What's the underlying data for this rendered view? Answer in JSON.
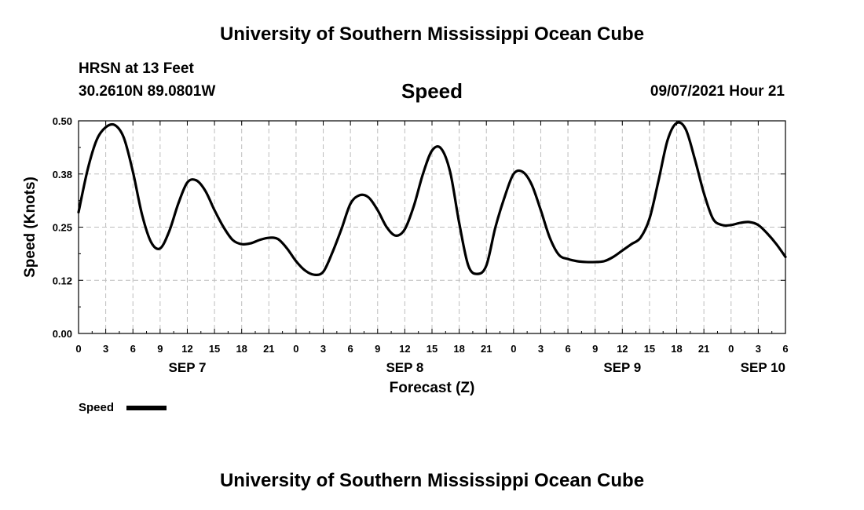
{
  "page": {
    "title": "University of Southern Mississippi Ocean Cube",
    "footer_title": "University of Southern Mississippi Ocean Cube",
    "station": "HRSN at 13 Feet",
    "coordinates": "30.2610N  89.0801W",
    "variable": "Speed",
    "datetime": "09/07/2021 Hour 21"
  },
  "chart_data": {
    "type": "line",
    "title": "Speed",
    "xlabel": "Forecast (Z)",
    "ylabel": "Speed (Knots)",
    "ylim": [
      0,
      0.5
    ],
    "xlim": [
      0,
      78
    ],
    "y_ticks": [
      "0.00",
      "0.12",
      "0.25",
      "0.38",
      "0.50"
    ],
    "x_ticks": [
      "0",
      "3",
      "6",
      "9",
      "12",
      "15",
      "18",
      "21",
      "0",
      "3",
      "6",
      "9",
      "12",
      "15",
      "18",
      "21",
      "0",
      "3",
      "6",
      "9",
      "12",
      "15",
      "18",
      "21",
      "0",
      "3",
      "6"
    ],
    "date_labels": [
      {
        "label": "SEP 7",
        "hour": 12
      },
      {
        "label": "SEP 8",
        "hour": 36
      },
      {
        "label": "SEP 9",
        "hour": 60
      },
      {
        "label": "SEP 10",
        "hour": 78
      }
    ],
    "grid": true,
    "legend": {
      "placement": "bottom-left",
      "entries": [
        {
          "name": "Speed",
          "color": "#000000"
        }
      ]
    },
    "series": [
      {
        "name": "Speed",
        "color": "#000000",
        "x": [
          0,
          1,
          2,
          3,
          4,
          5,
          6,
          7,
          8,
          9,
          10,
          11,
          12,
          13,
          14,
          15,
          16,
          17,
          18,
          19,
          20,
          21,
          22,
          23,
          24,
          25,
          26,
          27,
          28,
          29,
          30,
          31,
          32,
          33,
          34,
          35,
          36,
          37,
          38,
          39,
          40,
          41,
          42,
          43,
          44,
          45,
          46,
          47,
          48,
          49,
          50,
          51,
          52,
          53,
          54,
          55,
          56,
          57,
          58,
          59,
          60,
          61,
          62,
          63,
          64,
          65,
          66,
          67,
          68,
          69,
          70,
          71,
          72,
          73,
          74,
          75,
          76,
          77,
          78
        ],
        "values": [
          0.285,
          0.385,
          0.455,
          0.485,
          0.49,
          0.46,
          0.38,
          0.28,
          0.215,
          0.2,
          0.24,
          0.305,
          0.355,
          0.36,
          0.335,
          0.29,
          0.25,
          0.22,
          0.21,
          0.212,
          0.22,
          0.225,
          0.222,
          0.2,
          0.17,
          0.148,
          0.138,
          0.145,
          0.19,
          0.245,
          0.305,
          0.325,
          0.32,
          0.29,
          0.25,
          0.23,
          0.245,
          0.3,
          0.375,
          0.43,
          0.435,
          0.38,
          0.26,
          0.16,
          0.14,
          0.16,
          0.25,
          0.32,
          0.375,
          0.38,
          0.35,
          0.29,
          0.225,
          0.185,
          0.175,
          0.17,
          0.168,
          0.168,
          0.17,
          0.18,
          0.195,
          0.21,
          0.225,
          0.27,
          0.36,
          0.455,
          0.495,
          0.48,
          0.41,
          0.33,
          0.27,
          0.255,
          0.255,
          0.26,
          0.262,
          0.255,
          0.235,
          0.21,
          0.18
        ]
      }
    ]
  }
}
